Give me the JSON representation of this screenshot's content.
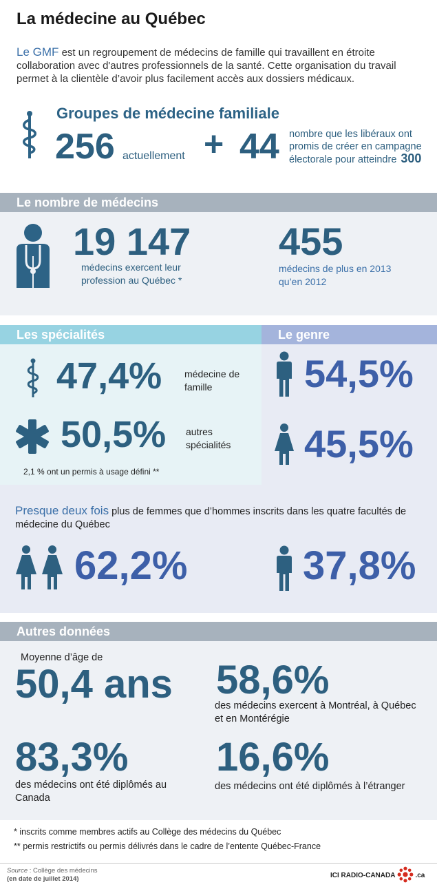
{
  "title": "La médecine au Québec",
  "intro": {
    "highlight": "Le GMF",
    "text": " est un regroupement de médecins de famille qui travaillent en étroite collaboration avec d'autres professionnels de la santé. Cette organisation du travail permet à la clientèle d’avoir plus facilement accès aux dossiers médicaux."
  },
  "gmf": {
    "title": "Groupes de médecine familiale",
    "current_value": "256",
    "current_label": "actuellement",
    "plus": "+",
    "promised_value": "44",
    "promised_text": "nombre que les libéraux ont promis de créer en campagne électorale pour atteindre",
    "target_value": "300",
    "icon": "caduceus-icon"
  },
  "medecins": {
    "header": "Le nombre de médecins",
    "total_value": "19 147",
    "total_text": "médecins exercent leur profession au Québec *",
    "increase_value": "455",
    "increase_text": "médecins de plus en 2013 qu’en 2012",
    "icon": "doctor-icon"
  },
  "specialites": {
    "header": "Les spécialités",
    "famille_value": "47,4%",
    "famille_label": "médecine de famille",
    "autres_value": "50,5%",
    "autres_label": "autres spécialités",
    "note": "2,1 % ont un permis à usage défini **"
  },
  "genre": {
    "header": "Le genre",
    "hommes_value": "54,5%",
    "femmes_value": "45,5%"
  },
  "facultes": {
    "highlight": "Presque deux fois",
    "text": " plus de femmes que d’hommes inscrits dans les quatre facultés de médecine du Québec",
    "femmes_value": "62,2%",
    "hommes_value": "37,8%"
  },
  "autres": {
    "header": "Autres données",
    "age_label": "Moyenne d’âge de",
    "age_value": "50,4 ans",
    "villes_value": "58,6%",
    "villes_text": "des médecins exercent à Montréal, à Québec et en Montérégie",
    "canada_value": "83,3%",
    "canada_text": "des médecins ont été diplômés au Canada",
    "etranger_value": "16,6%",
    "etranger_text": "des médecins ont été diplômés à l’étranger"
  },
  "footnotes": {
    "fn1": "* inscrits comme membres actifs au Collège des médecins du Québec",
    "fn2": "** permis restrictifs ou permis délivrés dans le cadre de l’entente Québec-France"
  },
  "source": {
    "label": "Source",
    "text": " : Collège des médecins",
    "date": "(en date de juillet 2014)"
  },
  "brand": {
    "left": "ICI RADIO-CANADA",
    "right": ".ca",
    "logo_color": "#d52b1e"
  },
  "colors": {
    "dark_teal": "#2d5f7f",
    "blue": "#3d5fa8",
    "grey_bar": "#a7b2bd",
    "spec_bar": "#97d3e2",
    "genre_bar": "#a4b4dc"
  }
}
